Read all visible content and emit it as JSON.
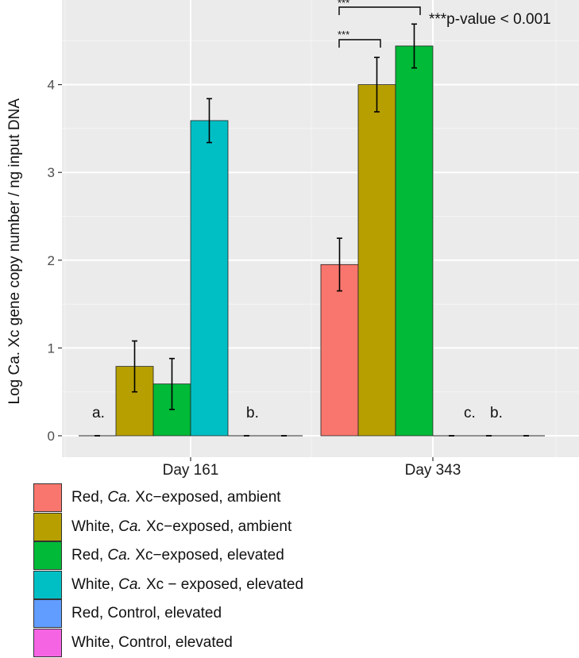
{
  "chart_data": {
    "type": "bar",
    "ylabel": "Log Ca. Xc gene copy  number / ng input DNA",
    "ylim": [
      -0.2,
      4.95
    ],
    "yticks": [
      0,
      1,
      2,
      3,
      4
    ],
    "categories": [
      "Day 161",
      "Day 343"
    ],
    "series": [
      {
        "name": "Red, Ca. Xc−exposed, ambient",
        "color": "#F8766D",
        "values": [
          0,
          1.95
        ],
        "errors": [
          0,
          0.3
        ]
      },
      {
        "name": "White, Ca. Xc−exposed, ambient",
        "color": "#B79F00",
        "values": [
          0.79,
          4.0
        ],
        "errors": [
          0.29,
          0.31
        ]
      },
      {
        "name": "Red, Ca. Xc−exposed, elevated",
        "color": "#00BA38",
        "values": [
          0.59,
          4.44
        ],
        "errors": [
          0.29,
          0.25
        ]
      },
      {
        "name": "White, Ca. Xc − exposed, elevated",
        "color": "#00BFC4",
        "values": [
          3.59,
          0
        ],
        "errors": [
          0.25,
          0
        ]
      },
      {
        "name": "Red, Control, elevated",
        "color": "#619CFF",
        "values": [
          0,
          0
        ],
        "errors": [
          0,
          0
        ]
      },
      {
        "name": "White, Control, elevated",
        "color": "#F564E3",
        "values": [
          0,
          0
        ],
        "errors": [
          0,
          0
        ]
      }
    ],
    "annotations": {
      "day161_left": "a.",
      "day161_right": "b.",
      "day343_c": "c.",
      "day343_b": "b.",
      "sig_stars": "***",
      "sig_note": "***p-value < 0.001"
    },
    "grid": true,
    "legend_position": "bottom-left"
  },
  "legend": [
    {
      "prefix": "Red, ",
      "italic": "Ca.",
      "suffix": " Xc−exposed, ambient",
      "color": "#F8766D"
    },
    {
      "prefix": "White, ",
      "italic": "Ca.",
      "suffix": " Xc−exposed, ambient",
      "color": "#B79F00"
    },
    {
      "prefix": "Red, ",
      "italic": "Ca.",
      "suffix": " Xc−exposed, elevated",
      "color": "#00BA38"
    },
    {
      "prefix": "White, ",
      "italic": "Ca.",
      "suffix": " Xc − exposed, elevated",
      "color": "#00BFC4"
    },
    {
      "prefix": "Red, Control, elevated",
      "italic": "",
      "suffix": "",
      "color": "#619CFF"
    },
    {
      "prefix": "White, Control, elevated",
      "italic": "",
      "suffix": "",
      "color": "#F564E3"
    }
  ]
}
